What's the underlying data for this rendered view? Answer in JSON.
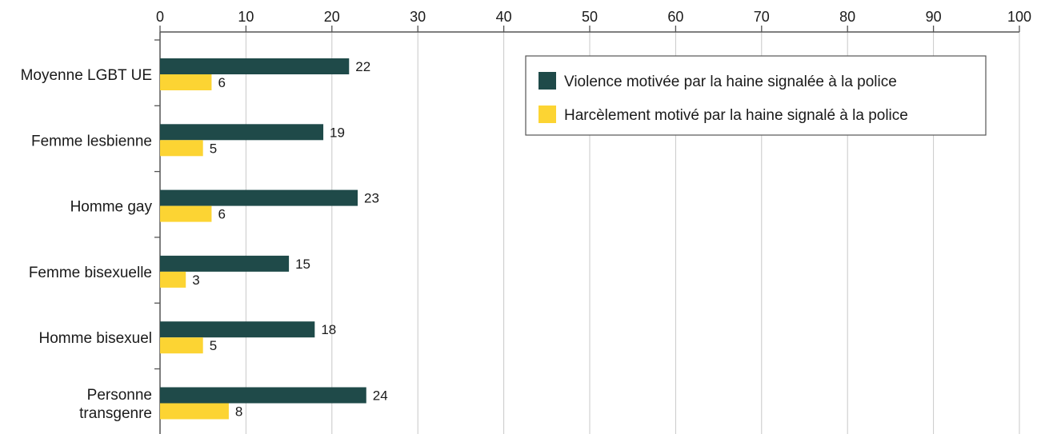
{
  "chart_data": {
    "type": "bar",
    "orientation": "horizontal",
    "categories": [
      [
        "Moyenne LGBT UE"
      ],
      [
        "Femme lesbienne"
      ],
      [
        "Homme gay"
      ],
      [
        "Femme bisexuelle"
      ],
      [
        "Homme bisexuel"
      ],
      [
        "Personne",
        "transgenre"
      ]
    ],
    "series": [
      {
        "name": "Violence motivée par la haine signalée à la police",
        "color": "#1f4a49",
        "values": [
          22,
          19,
          23,
          15,
          18,
          24
        ]
      },
      {
        "name": "Harcèlement motivé par la haine signalé à la police",
        "color": "#fcd433",
        "values": [
          6,
          5,
          6,
          3,
          5,
          8
        ]
      }
    ],
    "xlim": [
      0,
      100
    ],
    "xticks": [
      0,
      10,
      20,
      30,
      40,
      50,
      60,
      70,
      80,
      90,
      100
    ],
    "x_axis_position": "top",
    "grid": "vertical",
    "legend_position": "top-right",
    "data_labels": true,
    "title": "",
    "xlabel": "",
    "ylabel": ""
  }
}
